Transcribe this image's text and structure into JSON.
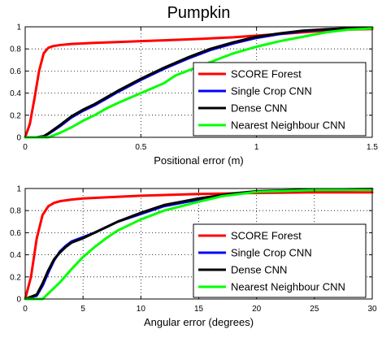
{
  "chart_data": [
    {
      "type": "line",
      "title": "Pumpkin",
      "xlabel": "Positional error (m)",
      "ylabel": "",
      "xlim": [
        0,
        1.5
      ],
      "ylim": [
        0,
        1
      ],
      "xticks": [
        0,
        0.5,
        1,
        1.5
      ],
      "xtick_labels": [
        "0",
        "0.5",
        "1",
        "1.5"
      ],
      "yticks": [
        0,
        0.2,
        0.4,
        0.6,
        0.8,
        1
      ],
      "ytick_labels": [
        "0",
        "0.2",
        "0.4",
        "0.6",
        "0.8",
        "1"
      ],
      "grid": true,
      "legend": "bottom-right",
      "series": [
        {
          "name": "SCORE Forest",
          "color": "#ff0000",
          "x": [
            0,
            0.02,
            0.04,
            0.06,
            0.08,
            0.1,
            0.12,
            0.15,
            0.2,
            0.3,
            0.4,
            0.5,
            0.6,
            0.7,
            0.8,
            0.9,
            1.0,
            1.1,
            1.2,
            1.3,
            1.4,
            1.5
          ],
          "y": [
            0,
            0.12,
            0.35,
            0.6,
            0.76,
            0.81,
            0.825,
            0.835,
            0.845,
            0.855,
            0.862,
            0.87,
            0.878,
            0.886,
            0.895,
            0.905,
            0.92,
            0.935,
            0.95,
            0.965,
            0.975,
            0.98
          ]
        },
        {
          "name": "Single Crop CNN",
          "color": "#0000ff",
          "x": [
            0,
            0.05,
            0.08,
            0.1,
            0.15,
            0.2,
            0.25,
            0.3,
            0.35,
            0.4,
            0.5,
            0.6,
            0.7,
            0.8,
            0.9,
            1.0,
            1.1,
            1.2,
            1.3,
            1.4,
            1.5
          ],
          "y": [
            0,
            0.0,
            0.01,
            0.03,
            0.1,
            0.18,
            0.24,
            0.29,
            0.35,
            0.41,
            0.52,
            0.62,
            0.71,
            0.79,
            0.85,
            0.9,
            0.935,
            0.96,
            0.975,
            0.985,
            0.99
          ]
        },
        {
          "name": "Dense CNN",
          "color": "#000000",
          "x": [
            0,
            0.05,
            0.08,
            0.1,
            0.15,
            0.2,
            0.25,
            0.3,
            0.35,
            0.4,
            0.5,
            0.6,
            0.7,
            0.8,
            0.9,
            1.0,
            1.1,
            1.2,
            1.3,
            1.4,
            1.5
          ],
          "y": [
            0,
            0.0,
            0.01,
            0.035,
            0.11,
            0.19,
            0.25,
            0.3,
            0.36,
            0.42,
            0.53,
            0.63,
            0.72,
            0.8,
            0.86,
            0.91,
            0.94,
            0.965,
            0.978,
            0.988,
            0.992
          ]
        },
        {
          "name": "Nearest Neighbour CNN",
          "color": "#00ff00",
          "x": [
            0,
            0.1,
            0.15,
            0.2,
            0.25,
            0.3,
            0.35,
            0.4,
            0.5,
            0.6,
            0.65,
            0.7,
            0.8,
            0.9,
            1.0,
            1.1,
            1.2,
            1.3,
            1.4,
            1.5
          ],
          "y": [
            0,
            0.0,
            0.04,
            0.09,
            0.15,
            0.2,
            0.26,
            0.31,
            0.4,
            0.49,
            0.56,
            0.6,
            0.68,
            0.76,
            0.82,
            0.87,
            0.91,
            0.95,
            0.975,
            0.985
          ]
        }
      ]
    },
    {
      "type": "line",
      "title": "",
      "xlabel": "Angular error (degrees)",
      "ylabel": "",
      "xlim": [
        0,
        30
      ],
      "ylim": [
        0,
        1
      ],
      "xticks": [
        0,
        5,
        10,
        15,
        20,
        25,
        30
      ],
      "xtick_labels": [
        "0",
        "5",
        "10",
        "15",
        "20",
        "25",
        "30"
      ],
      "yticks": [
        0,
        0.2,
        0.4,
        0.6,
        0.8,
        1
      ],
      "ytick_labels": [
        "0",
        "0.2",
        "0.4",
        "0.6",
        "0.8",
        "1"
      ],
      "grid": true,
      "legend": "bottom-right",
      "series": [
        {
          "name": "SCORE Forest",
          "color": "#ff0000",
          "x": [
            0,
            0.5,
            1,
            1.5,
            2,
            2.5,
            3,
            4,
            5,
            7,
            10,
            15,
            20,
            25,
            30
          ],
          "y": [
            0,
            0.2,
            0.55,
            0.76,
            0.84,
            0.87,
            0.885,
            0.9,
            0.91,
            0.92,
            0.935,
            0.95,
            0.96,
            0.965,
            0.965
          ]
        },
        {
          "name": "Single Crop CNN",
          "color": "#0000ff",
          "x": [
            0,
            1,
            1.5,
            2,
            2.5,
            3,
            3.5,
            4,
            5,
            6,
            7,
            8,
            10,
            12,
            15,
            18,
            20,
            25,
            30
          ],
          "y": [
            0,
            0.03,
            0.12,
            0.24,
            0.35,
            0.43,
            0.48,
            0.52,
            0.56,
            0.6,
            0.65,
            0.7,
            0.77,
            0.84,
            0.9,
            0.95,
            0.97,
            0.985,
            0.99
          ]
        },
        {
          "name": "Dense CNN",
          "color": "#000000",
          "x": [
            0,
            1,
            1.5,
            2,
            2.5,
            3,
            3.5,
            4,
            5,
            6,
            7,
            8,
            10,
            12,
            15,
            18,
            20,
            25,
            30
          ],
          "y": [
            0,
            0.04,
            0.14,
            0.26,
            0.36,
            0.42,
            0.47,
            0.51,
            0.55,
            0.6,
            0.65,
            0.7,
            0.78,
            0.85,
            0.91,
            0.955,
            0.975,
            0.99,
            0.995
          ]
        },
        {
          "name": "Nearest Neighbour CNN",
          "color": "#00ff00",
          "x": [
            0,
            1.5,
            2,
            3,
            4,
            5,
            6,
            7,
            8,
            10,
            12,
            15,
            17,
            20,
            25,
            30
          ],
          "y": [
            0,
            0.0,
            0.05,
            0.15,
            0.27,
            0.38,
            0.47,
            0.55,
            0.62,
            0.72,
            0.8,
            0.88,
            0.93,
            0.97,
            0.985,
            0.99
          ]
        }
      ]
    }
  ]
}
